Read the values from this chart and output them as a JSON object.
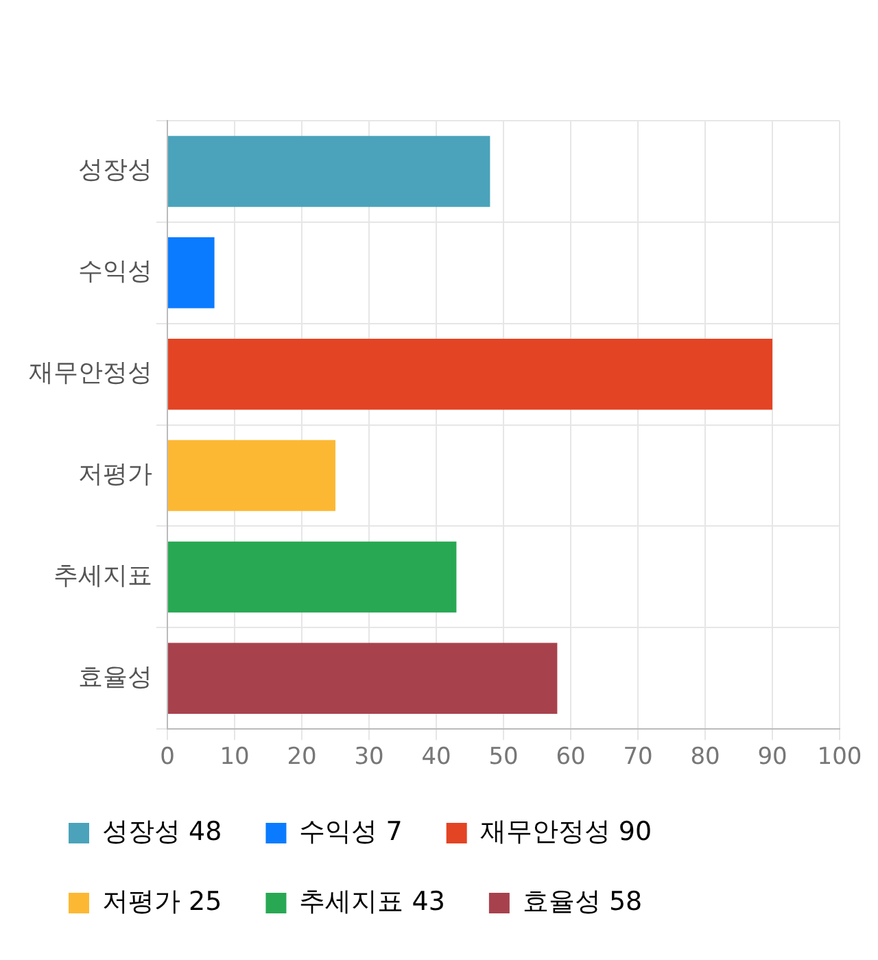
{
  "chart_data": {
    "type": "bar",
    "orientation": "horizontal",
    "stacked": true,
    "categories": [
      "성장성",
      "수익성",
      "재무안정성",
      "저평가",
      "추세지표",
      "효율성"
    ],
    "series": [
      {
        "name": "성장성 48",
        "color": "#4aa3ba",
        "values": [
          48,
          null,
          null,
          null,
          null,
          null
        ]
      },
      {
        "name": "수익성 7",
        "color": "#0a7bff",
        "values": [
          null,
          7,
          null,
          null,
          null,
          null
        ]
      },
      {
        "name": "재무안정성 90",
        "color": "#e34424",
        "values": [
          null,
          null,
          90,
          null,
          null,
          null
        ]
      },
      {
        "name": "저평가 25",
        "color": "#fdb833",
        "values": [
          null,
          null,
          null,
          25,
          null,
          null
        ]
      },
      {
        "name": "추세지표 43",
        "color": "#29a853",
        "values": [
          null,
          null,
          null,
          null,
          43,
          null
        ]
      },
      {
        "name": "효율성 58",
        "color": "#a7424d",
        "values": [
          null,
          null,
          null,
          null,
          null,
          58
        ]
      }
    ],
    "xlim": [
      0,
      100
    ],
    "xticks": [
      0,
      10,
      20,
      30,
      40,
      50,
      60,
      70,
      80,
      90,
      100
    ],
    "grid": true,
    "legend": "bottom"
  }
}
